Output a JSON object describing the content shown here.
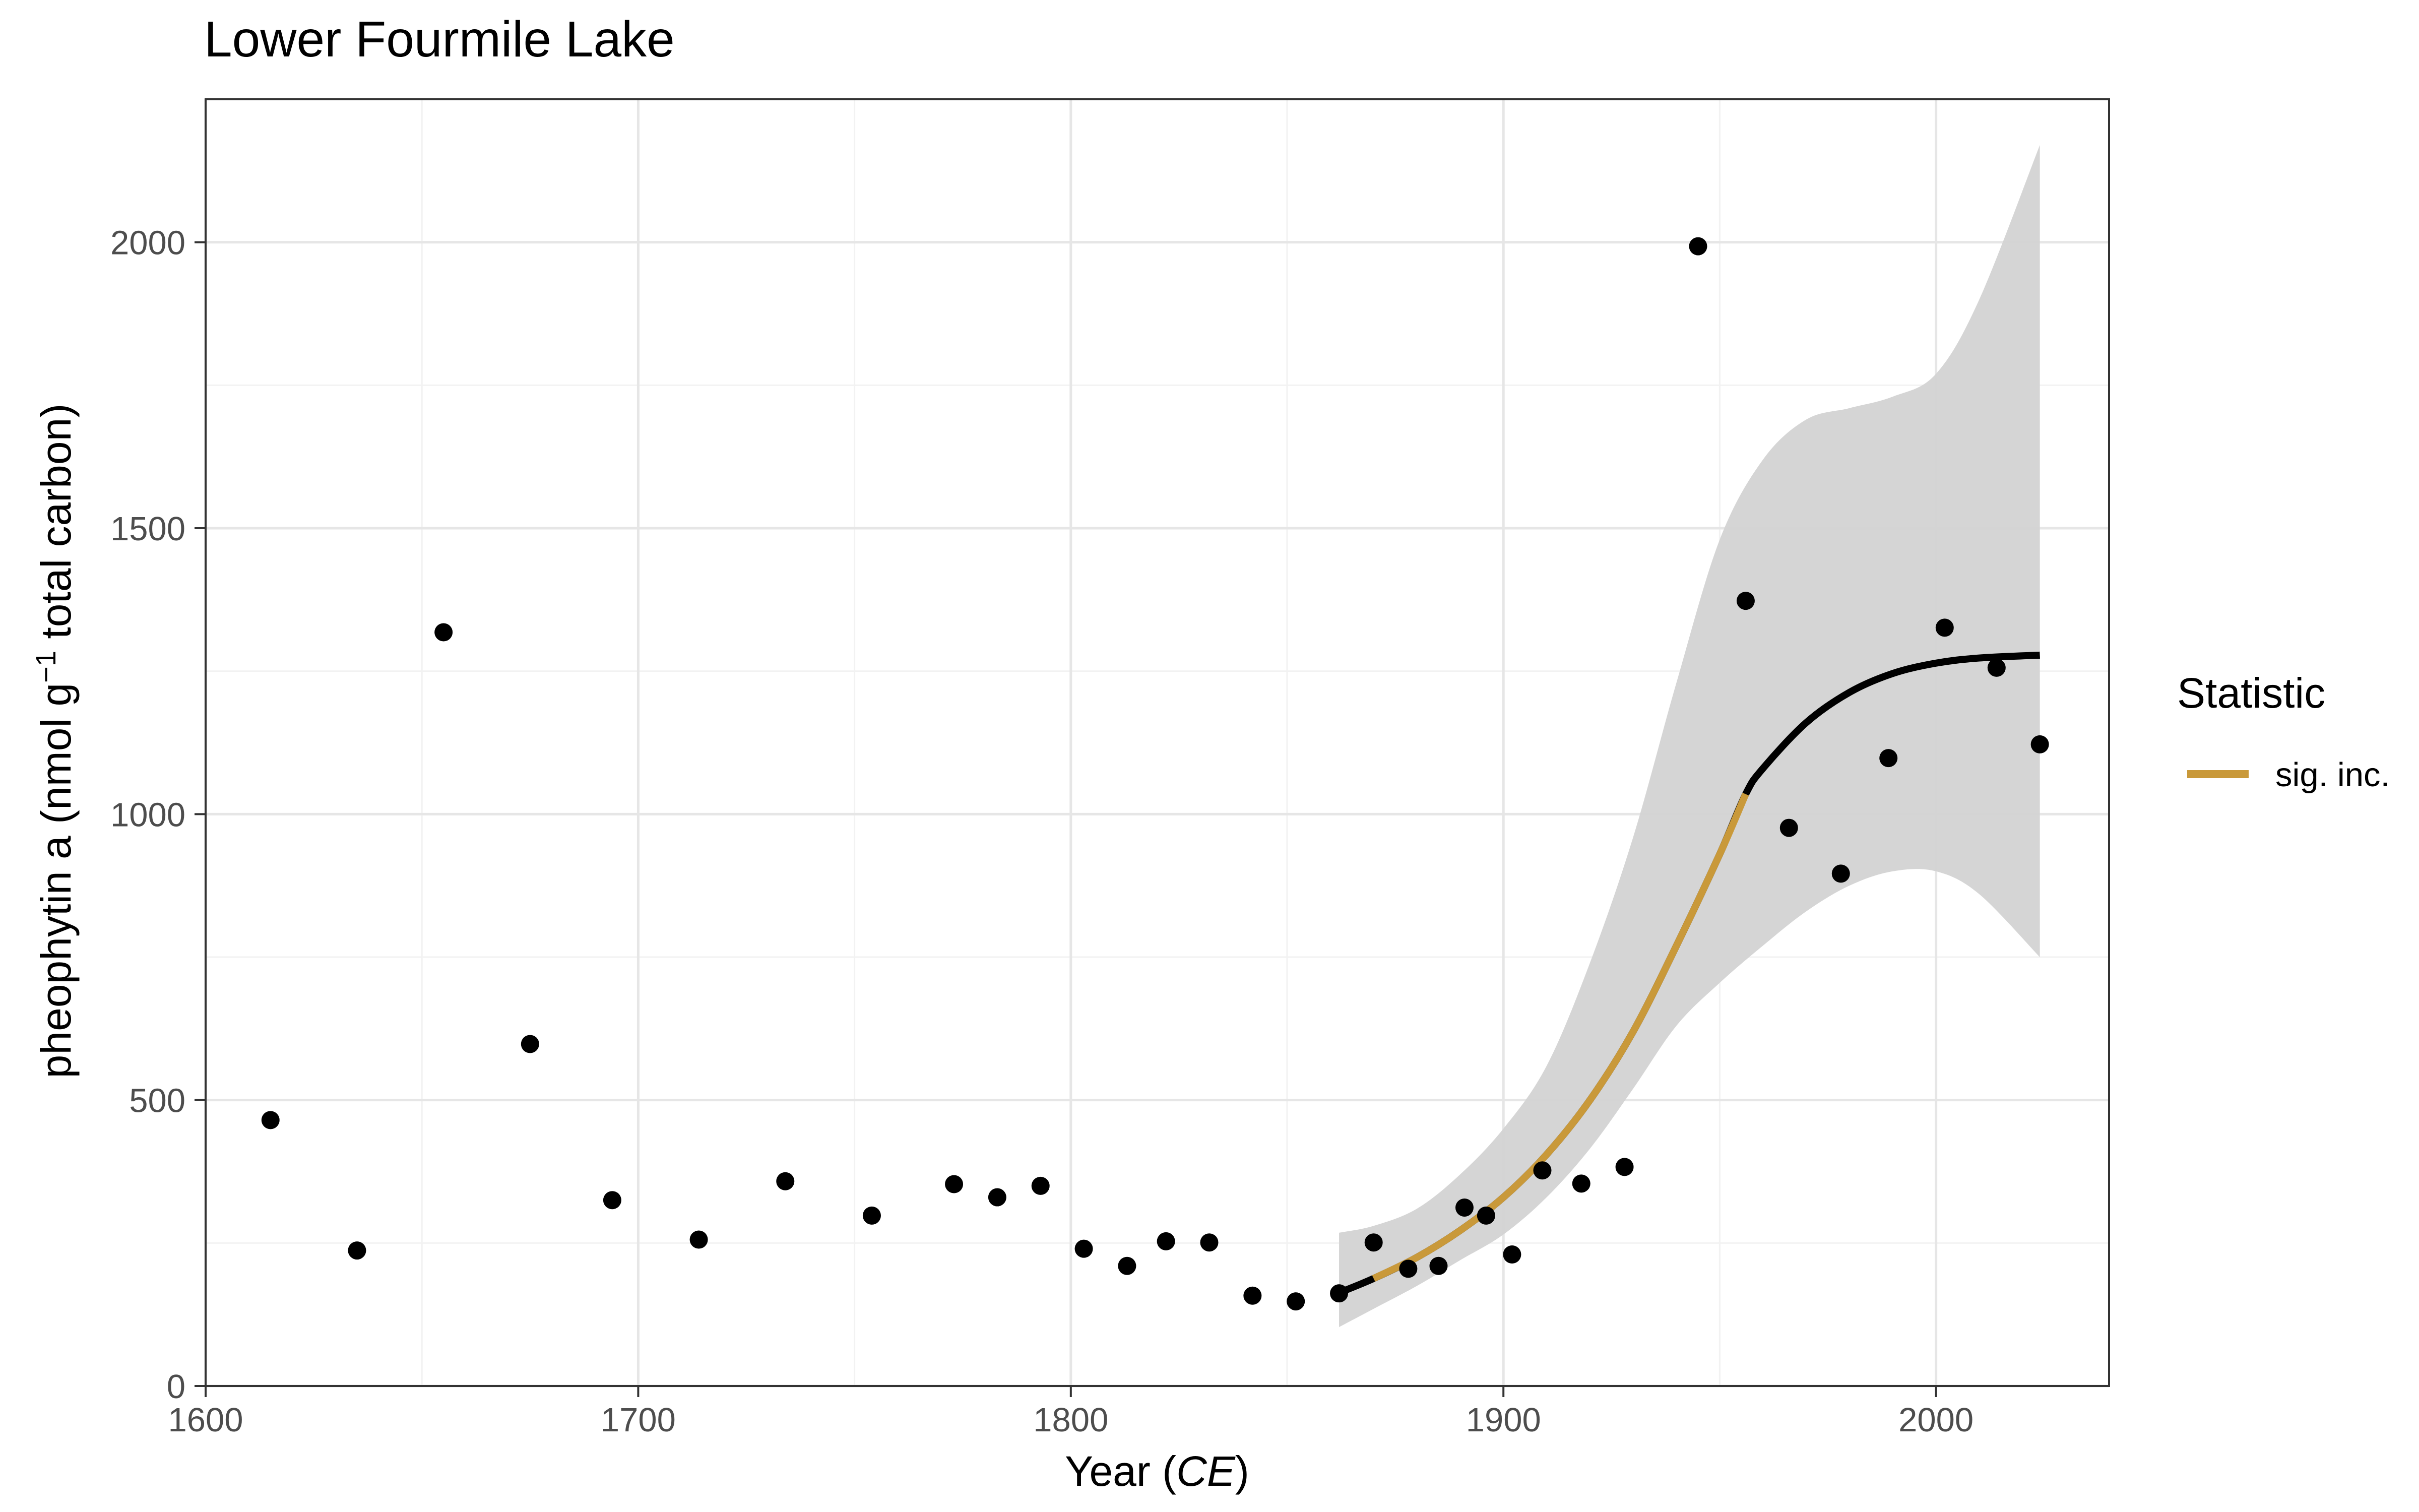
{
  "title": "Lower Fourmile Lake",
  "colors": {
    "points": "#000000",
    "fit": "#000000",
    "significant": "#C9993A",
    "ribbon": "#d3d3d3",
    "grid_major": "#e6e6e6",
    "grid_minor": "#f2f2f2"
  },
  "chart_data": {
    "type": "scatter",
    "title": "Lower Fourmile Lake",
    "xlabel_prefix": "Year (",
    "xlabel_italic": "CE",
    "xlabel_suffix": ")",
    "ylabel_prefix": "pheophytin a (nmol g",
    "ylabel_sup": "−1",
    "ylabel_suffix": " total carbon)",
    "xlim": [
      1600,
      2040
    ],
    "ylim": [
      0,
      2250
    ],
    "x_ticks": [
      1600,
      1700,
      1800,
      1900,
      2000
    ],
    "y_ticks": [
      0,
      500,
      1000,
      1500,
      2000
    ],
    "grid": true,
    "legend": {
      "position": "right",
      "title": "Statistic",
      "entries": [
        "sig. inc."
      ]
    },
    "points": [
      {
        "x": 1615,
        "y": 465
      },
      {
        "x": 1635,
        "y": 237
      },
      {
        "x": 1655,
        "y": 1318
      },
      {
        "x": 1675,
        "y": 598
      },
      {
        "x": 1694,
        "y": 325
      },
      {
        "x": 1714,
        "y": 256
      },
      {
        "x": 1734,
        "y": 358
      },
      {
        "x": 1754,
        "y": 298
      },
      {
        "x": 1773,
        "y": 353
      },
      {
        "x": 1783,
        "y": 330
      },
      {
        "x": 1793,
        "y": 350
      },
      {
        "x": 1803,
        "y": 240
      },
      {
        "x": 1813,
        "y": 210
      },
      {
        "x": 1822,
        "y": 253
      },
      {
        "x": 1832,
        "y": 251
      },
      {
        "x": 1842,
        "y": 158
      },
      {
        "x": 1852,
        "y": 148
      },
      {
        "x": 1862,
        "y": 162
      },
      {
        "x": 1870,
        "y": 251
      },
      {
        "x": 1878,
        "y": 205
      },
      {
        "x": 1885,
        "y": 210
      },
      {
        "x": 1891,
        "y": 312
      },
      {
        "x": 1896,
        "y": 298
      },
      {
        "x": 1902,
        "y": 230
      },
      {
        "x": 1909,
        "y": 377
      },
      {
        "x": 1918,
        "y": 354
      },
      {
        "x": 1928,
        "y": 383
      },
      {
        "x": 1945,
        "y": 1993
      },
      {
        "x": 1956,
        "y": 1373
      },
      {
        "x": 1966,
        "y": 976
      },
      {
        "x": 1978,
        "y": 896
      },
      {
        "x": 1989,
        "y": 1098
      },
      {
        "x": 2002,
        "y": 1326
      },
      {
        "x": 2014,
        "y": 1256
      },
      {
        "x": 2024,
        "y": 1122
      }
    ],
    "fit_line": {
      "x": [
        1862,
        1870,
        1880,
        1890,
        1900,
        1910,
        1920,
        1930,
        1940,
        1950,
        1956,
        1960,
        1970,
        1980,
        1990,
        2000,
        2010,
        2024
      ],
      "y": [
        163,
        188,
        225,
        272,
        330,
        405,
        500,
        620,
        770,
        930,
        1035,
        1080,
        1160,
        1213,
        1246,
        1264,
        1273,
        1278
      ]
    },
    "significant_increase_range": [
      1870,
      1956
    ],
    "ribbon": {
      "x": [
        1862,
        1870,
        1880,
        1890,
        1900,
        1910,
        1920,
        1930,
        1940,
        1950,
        1960,
        1970,
        1980,
        1990,
        2000,
        2010,
        2024
      ],
      "lower": [
        103,
        135,
        175,
        220,
        265,
        330,
        415,
        520,
        630,
        705,
        770,
        830,
        875,
        900,
        900,
        860,
        750
      ],
      "upper": [
        268,
        280,
        310,
        370,
        450,
        560,
        740,
        960,
        1230,
        1480,
        1620,
        1690,
        1710,
        1730,
        1770,
        1900,
        2170
      ]
    }
  }
}
